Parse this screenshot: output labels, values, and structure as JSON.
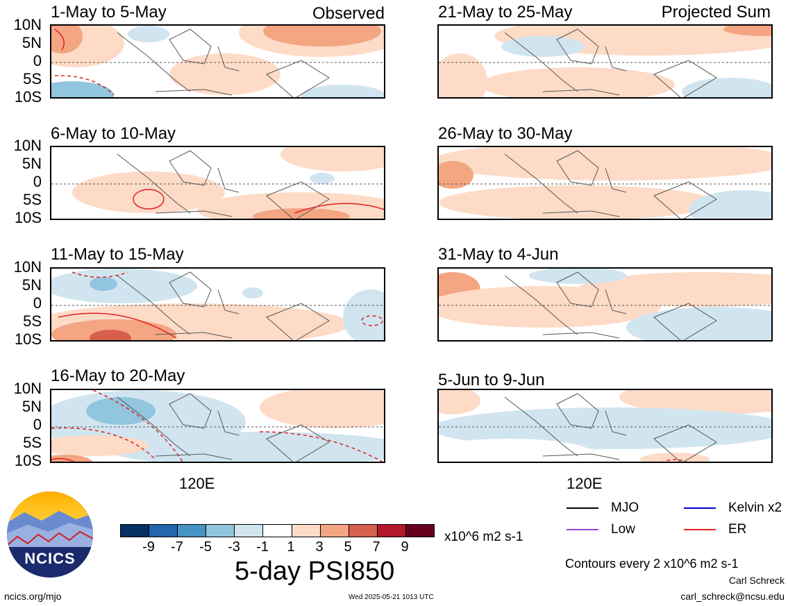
{
  "header": {
    "left_tag": "Observed",
    "right_tag": "Projected Sum"
  },
  "lat_labels": [
    "10N",
    "5N",
    "0",
    "5S",
    "10S"
  ],
  "lon_label": "120E",
  "panels_left": [
    {
      "title": "1-May to 5-May"
    },
    {
      "title": "6-May to 10-May"
    },
    {
      "title": "11-May to 15-May"
    },
    {
      "title": "16-May to 20-May"
    }
  ],
  "panels_right": [
    {
      "title": "21-May to 25-May"
    },
    {
      "title": "26-May to 30-May"
    },
    {
      "title": "31-May to 4-Jun"
    },
    {
      "title": "5-Jun to 9-Jun"
    }
  ],
  "colorbar": {
    "labels": [
      "-9",
      "-7",
      "-5",
      "-3",
      "-1",
      "1",
      "3",
      "5",
      "7",
      "9"
    ],
    "colors": [
      "#053061",
      "#2166ac",
      "#4393c3",
      "#92c5de",
      "#d1e5f0",
      "#ffffff",
      "#fddbc7",
      "#f4a582",
      "#d6604d",
      "#b2182b",
      "#67001f"
    ],
    "unit": "x10^6 m2 s-1"
  },
  "main_title": "5-day PSI850",
  "legend": {
    "items": [
      {
        "label": "MJO",
        "color": "#000000"
      },
      {
        "label": "Kelvin x2",
        "color": "#0000cc"
      },
      {
        "label": "Low",
        "color": "#a040e0"
      },
      {
        "label": "ER",
        "color": "#e02020"
      }
    ],
    "contours_note": "Contours every 2 x10^6 m2 s-1"
  },
  "logo": {
    "text": "NCICS"
  },
  "footer": {
    "url": "ncics.org/mjo",
    "timestamp": "Wed 2025-05-21 1013 UTC",
    "author": "Carl Schreck",
    "email": "carl_schreck@ncsu.edu"
  }
}
